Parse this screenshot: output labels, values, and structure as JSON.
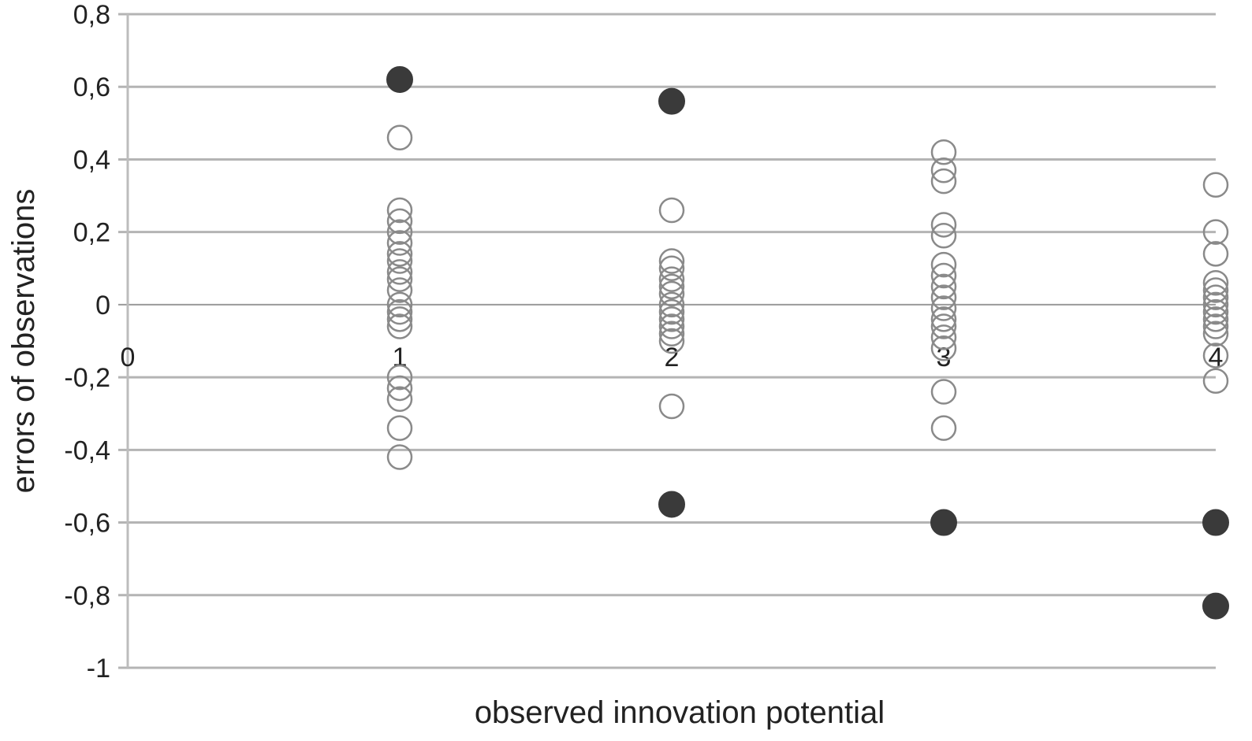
{
  "chart_data": {
    "type": "scatter",
    "xlabel": "observed innovation potential",
    "ylabel": "errors of observations",
    "xlim": [
      0,
      4
    ],
    "ylim": [
      -1,
      0.8
    ],
    "x_ticks": [
      0,
      1,
      2,
      3,
      4
    ],
    "x_tick_labels": [
      "0",
      "1",
      "2",
      "3",
      "4"
    ],
    "y_ticks": [
      0.8,
      0.6,
      0.4,
      0.2,
      0,
      -0.2,
      -0.4,
      -0.6,
      -0.8,
      -1
    ],
    "y_tick_labels": [
      "0,8",
      "0,6",
      "0,4",
      "0,2",
      "0",
      "-0,2",
      "-0,4",
      "-0,6",
      "-0,8",
      "-1"
    ],
    "grid": "horizontal",
    "colors": {
      "grid": "#b4b4b4",
      "axis": "#bdbdbd",
      "open_marker_stroke": "#8a8a8a",
      "filled_marker": "#3a3a3a"
    },
    "series": [
      {
        "marker": "open",
        "points": [
          {
            "x": 1,
            "y": 0.46
          },
          {
            "x": 1,
            "y": 0.26
          },
          {
            "x": 1,
            "y": 0.23
          },
          {
            "x": 1,
            "y": 0.2
          },
          {
            "x": 1,
            "y": 0.17
          },
          {
            "x": 1,
            "y": 0.14
          },
          {
            "x": 1,
            "y": 0.12
          },
          {
            "x": 1,
            "y": 0.09
          },
          {
            "x": 1,
            "y": 0.07
          },
          {
            "x": 1,
            "y": 0.04
          },
          {
            "x": 1,
            "y": 0.0
          },
          {
            "x": 1,
            "y": -0.02
          },
          {
            "x": 1,
            "y": -0.04
          },
          {
            "x": 1,
            "y": -0.06
          },
          {
            "x": 1,
            "y": -0.2
          },
          {
            "x": 1,
            "y": -0.23
          },
          {
            "x": 1,
            "y": -0.26
          },
          {
            "x": 1,
            "y": -0.34
          },
          {
            "x": 1,
            "y": -0.42
          },
          {
            "x": 2,
            "y": 0.26
          },
          {
            "x": 2,
            "y": 0.12
          },
          {
            "x": 2,
            "y": 0.1
          },
          {
            "x": 2,
            "y": 0.07
          },
          {
            "x": 2,
            "y": 0.05
          },
          {
            "x": 2,
            "y": 0.03
          },
          {
            "x": 2,
            "y": 0.0
          },
          {
            "x": 2,
            "y": -0.02
          },
          {
            "x": 2,
            "y": -0.04
          },
          {
            "x": 2,
            "y": -0.06
          },
          {
            "x": 2,
            "y": -0.08
          },
          {
            "x": 2,
            "y": -0.1
          },
          {
            "x": 2,
            "y": -0.28
          },
          {
            "x": 3,
            "y": 0.42
          },
          {
            "x": 3,
            "y": 0.37
          },
          {
            "x": 3,
            "y": 0.34
          },
          {
            "x": 3,
            "y": 0.22
          },
          {
            "x": 3,
            "y": 0.19
          },
          {
            "x": 3,
            "y": 0.11
          },
          {
            "x": 3,
            "y": 0.08
          },
          {
            "x": 3,
            "y": 0.05
          },
          {
            "x": 3,
            "y": 0.02
          },
          {
            "x": 3,
            "y": -0.01
          },
          {
            "x": 3,
            "y": -0.04
          },
          {
            "x": 3,
            "y": -0.06
          },
          {
            "x": 3,
            "y": -0.09
          },
          {
            "x": 3,
            "y": -0.12
          },
          {
            "x": 3,
            "y": -0.24
          },
          {
            "x": 3,
            "y": -0.34
          },
          {
            "x": 4,
            "y": 0.33
          },
          {
            "x": 4,
            "y": 0.2
          },
          {
            "x": 4,
            "y": 0.14
          },
          {
            "x": 4,
            "y": 0.06
          },
          {
            "x": 4,
            "y": 0.04
          },
          {
            "x": 4,
            "y": 0.02
          },
          {
            "x": 4,
            "y": 0.0
          },
          {
            "x": 4,
            "y": -0.02
          },
          {
            "x": 4,
            "y": -0.04
          },
          {
            "x": 4,
            "y": -0.06
          },
          {
            "x": 4,
            "y": -0.08
          },
          {
            "x": 4,
            "y": -0.14
          },
          {
            "x": 4,
            "y": -0.21
          }
        ]
      },
      {
        "marker": "filled",
        "points": [
          {
            "x": 1,
            "y": 0.62
          },
          {
            "x": 2,
            "y": 0.56
          },
          {
            "x": 2,
            "y": -0.55
          },
          {
            "x": 3,
            "y": -0.6
          },
          {
            "x": 4,
            "y": -0.6
          },
          {
            "x": 4,
            "y": -0.83
          }
        ]
      }
    ]
  }
}
